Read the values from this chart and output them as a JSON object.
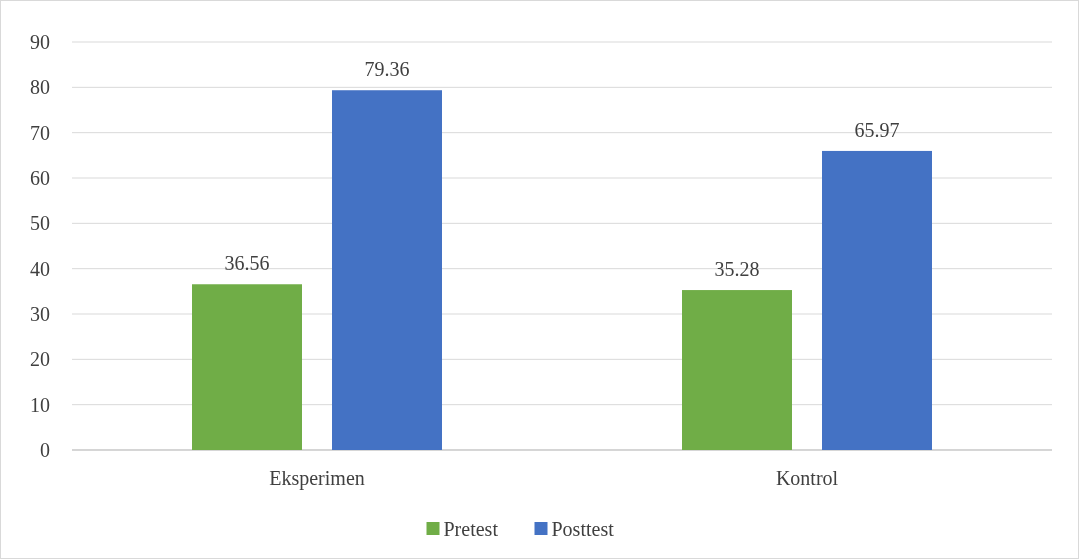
{
  "chart_data": {
    "type": "bar",
    "categories": [
      "Eksperimen",
      "Kontrol"
    ],
    "series": [
      {
        "name": "Pretest",
        "color": "#70ad47",
        "values": [
          36.56,
          35.28
        ]
      },
      {
        "name": "Posttest",
        "color": "#4472c4",
        "values": [
          79.36,
          65.97
        ]
      }
    ],
    "ylim": [
      0,
      90
    ],
    "yticks": [
      0,
      10,
      20,
      30,
      40,
      50,
      60,
      70,
      80,
      90
    ],
    "grid": "y",
    "legend": "bottom",
    "data_labels": true
  }
}
